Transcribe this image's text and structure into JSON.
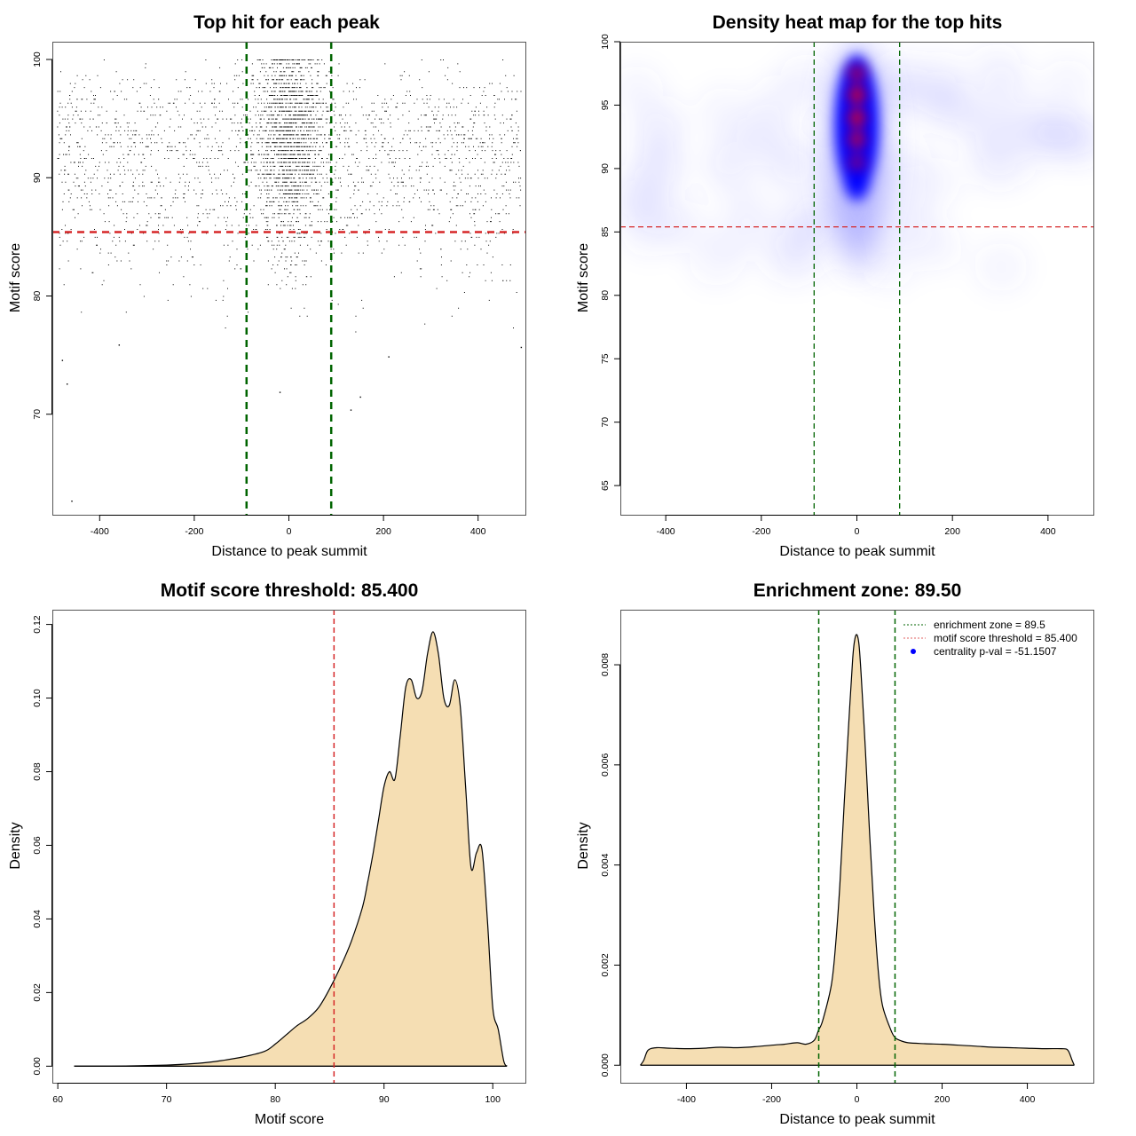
{
  "chart_data": [
    {
      "id": "scatter",
      "type": "scatter",
      "title": "Top hit for each peak",
      "xlabel": "Distance to peak summit",
      "ylabel": "Motif score",
      "xlim": [
        -500,
        500
      ],
      "ylim": [
        61.5,
        101.5
      ],
      "xticks": [
        -400,
        -200,
        0,
        200,
        400
      ],
      "xtick_labels": [
        "-400",
        "-200",
        "0",
        "200",
        "400"
      ],
      "yticks": [
        70,
        80,
        90,
        100
      ],
      "ytick_labels": [
        "70",
        "80",
        "90",
        "100"
      ],
      "grid": false,
      "description": "Dense cloud of points; uniform background across x in [-490,490] with scores mostly 84-99, strong concentration near x=0 (within about +/-90) with scores 88-100; sparse outliers down to ~62.7",
      "outliers": [
        [
          -460,
          62.7
        ],
        [
          -480,
          74.6
        ],
        [
          -470,
          72.6
        ],
        [
          130,
          70.4
        ],
        [
          -20,
          71.9
        ],
        [
          150,
          71.5
        ],
        [
          210,
          74.9
        ],
        [
          490,
          75.7
        ],
        [
          -360,
          75.9
        ]
      ],
      "hlines": [
        {
          "y": 85.4,
          "color": "#d62728",
          "style": "dashed",
          "label": "motif score threshold"
        }
      ],
      "vlines": [
        {
          "x": -89.5,
          "color": "#006400",
          "style": "dashed"
        },
        {
          "x": 89.5,
          "color": "#006400",
          "style": "dashed"
        }
      ]
    },
    {
      "id": "heatmap",
      "type": "heatmap",
      "title": "Density heat map for the top hits",
      "xlabel": "Distance to peak summit",
      "ylabel": "Motif score",
      "xlim": [
        -495,
        495
      ],
      "ylim": [
        62.7,
        100
      ],
      "xticks": [
        -400,
        -200,
        0,
        200,
        400
      ],
      "xtick_labels": [
        "-400",
        "-200",
        "0",
        "200",
        "400"
      ],
      "yticks": [
        65,
        70,
        75,
        80,
        85,
        90,
        95,
        100
      ],
      "ytick_labels": [
        "65",
        "70",
        "75",
        "80",
        "85",
        "90",
        "95",
        "100"
      ],
      "colormap": [
        "#ffffff",
        "#0000ff",
        "#ff0000"
      ],
      "hotspots": [
        {
          "x": 0,
          "y": 97.5,
          "intensity": 0.75
        },
        {
          "x": 0,
          "y": 95.8,
          "intensity": 1.0
        },
        {
          "x": 0,
          "y": 94.0,
          "intensity": 1.0
        },
        {
          "x": 0,
          "y": 92.3,
          "intensity": 0.85
        },
        {
          "x": 0,
          "y": 90.5,
          "intensity": 0.55
        }
      ],
      "hlines": [
        {
          "y": 85.4,
          "color": "#d62728",
          "style": "dashed"
        }
      ],
      "vlines": [
        {
          "x": -89.5,
          "color": "#006400",
          "style": "dashed"
        },
        {
          "x": 89.5,
          "color": "#006400",
          "style": "dashed"
        }
      ]
    },
    {
      "id": "score-density",
      "type": "area",
      "title": "Motif score threshold: 85.400",
      "xlabel": "Motif score",
      "ylabel": "Density",
      "xlim": [
        59.5,
        103
      ],
      "ylim": [
        -0.0045,
        0.124
      ],
      "xticks": [
        60,
        70,
        80,
        90,
        100
      ],
      "xtick_labels": [
        "60",
        "70",
        "80",
        "90",
        "100"
      ],
      "yticks": [
        0,
        0.02,
        0.04,
        0.06,
        0.08,
        0.1,
        0.12
      ],
      "ytick_labels": [
        "0.00",
        "0.02",
        "0.04",
        "0.06",
        "0.08",
        "0.10",
        "0.12"
      ],
      "fill": "#f5deb3",
      "x": [
        61.5,
        65,
        70,
        73,
        75,
        77,
        79,
        80,
        81,
        82,
        83,
        84,
        85,
        86,
        87,
        88,
        88.5,
        89,
        89.5,
        90,
        90.5,
        91,
        91.5,
        92,
        92.5,
        93,
        93.5,
        94,
        94.5,
        95,
        95.5,
        96,
        96.5,
        97,
        97.5,
        98,
        98.5,
        99,
        99.5,
        100,
        100.5,
        101,
        101.3
      ],
      "y": [
        0,
        0,
        0.0003,
        0.0008,
        0.0015,
        0.0025,
        0.004,
        0.006,
        0.0085,
        0.011,
        0.013,
        0.016,
        0.021,
        0.027,
        0.034,
        0.043,
        0.05,
        0.058,
        0.067,
        0.076,
        0.08,
        0.078,
        0.09,
        0.103,
        0.105,
        0.1,
        0.102,
        0.112,
        0.118,
        0.112,
        0.1,
        0.098,
        0.105,
        0.098,
        0.076,
        0.054,
        0.058,
        0.059,
        0.04,
        0.016,
        0.01,
        0.0015,
        0
      ],
      "vlines": [
        {
          "x": 85.4,
          "color": "#d62728",
          "style": "dashed"
        }
      ]
    },
    {
      "id": "distance-density",
      "type": "area",
      "title": "Enrichment zone: 89.50",
      "xlabel": "Distance to peak summit",
      "ylabel": "Density",
      "xlim": [
        -555,
        555
      ],
      "ylim": [
        -0.00035,
        0.0091
      ],
      "xticks": [
        -400,
        -200,
        0,
        200,
        400
      ],
      "xtick_labels": [
        "-400",
        "-200",
        "0",
        "200",
        "400"
      ],
      "yticks": [
        0,
        0.002,
        0.004,
        0.006,
        0.008
      ],
      "ytick_labels": [
        "0.000",
        "0.002",
        "0.004",
        "0.006",
        "0.008"
      ],
      "fill": "#f5deb3",
      "x": [
        -508,
        -500,
        -490,
        -470,
        -440,
        -400,
        -360,
        -320,
        -280,
        -240,
        -200,
        -170,
        -140,
        -120,
        -100,
        -90,
        -80,
        -60,
        -50,
        -40,
        -30,
        -20,
        -10,
        -5,
        0,
        5,
        10,
        20,
        30,
        40,
        50,
        60,
        80,
        90,
        100,
        120,
        160,
        200,
        240,
        280,
        320,
        360,
        400,
        440,
        480,
        495,
        505,
        510
      ],
      "y": [
        0,
        0.0001,
        0.0003,
        0.00035,
        0.00034,
        0.00033,
        0.00034,
        0.00036,
        0.00035,
        0.00037,
        0.0004,
        0.00042,
        0.00045,
        0.00042,
        0.0005,
        0.0007,
        0.0009,
        0.0016,
        0.0024,
        0.0036,
        0.0052,
        0.0067,
        0.0081,
        0.0085,
        0.0086,
        0.0084,
        0.0078,
        0.0063,
        0.0046,
        0.0031,
        0.0019,
        0.0012,
        0.0007,
        0.00055,
        0.0005,
        0.00045,
        0.00043,
        0.00042,
        0.0004,
        0.00038,
        0.00036,
        0.00035,
        0.00034,
        0.00033,
        0.00033,
        0.0003,
        0.0001,
        0
      ],
      "vlines": [
        {
          "x": -89.5,
          "color": "#006400",
          "style": "dashed"
        },
        {
          "x": 89.5,
          "color": "#006400",
          "style": "dashed"
        }
      ],
      "legend": {
        "position": "top-right",
        "entries": [
          {
            "label": "enrichment zone = 89.5",
            "color": "#006400",
            "symbol": "dotted-line"
          },
          {
            "label": "motif score threshold = 85.400",
            "color": "#e06060",
            "symbol": "dotted-line"
          },
          {
            "label": "centrality p-val = -51.1507",
            "color": "#0000ff",
            "symbol": "dot"
          }
        ]
      }
    }
  ]
}
